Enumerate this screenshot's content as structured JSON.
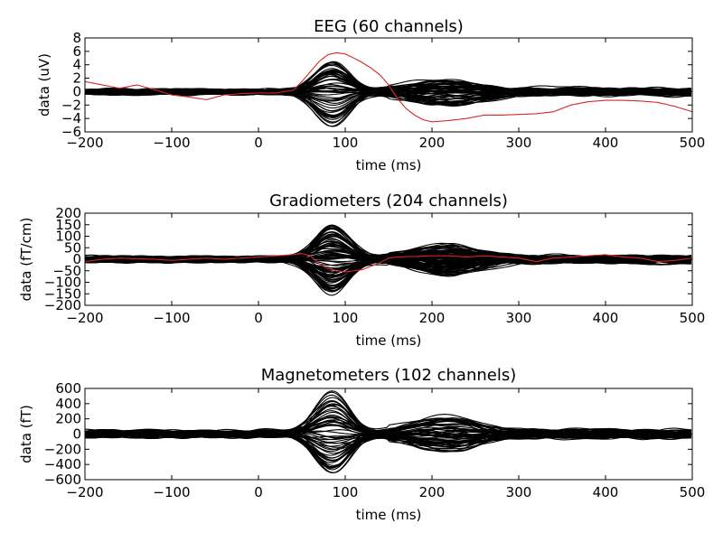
{
  "colors": {
    "trace": "#000000",
    "highlight": "#d62728",
    "background": "#ffffff"
  },
  "chart_data": [
    {
      "type": "line",
      "title": "EEG (60 channels)",
      "xlabel": "time (ms)",
      "ylabel": "data (uV)",
      "xlim": [
        -200,
        500
      ],
      "ylim": [
        -6,
        8
      ],
      "xticks": [
        -200,
        -100,
        0,
        100,
        200,
        300,
        400,
        500
      ],
      "xtick_labels": [
        "−200",
        "−100",
        "0",
        "100",
        "200",
        "300",
        "400",
        "500"
      ],
      "yticks": [
        8,
        6,
        4,
        2,
        0,
        -2,
        -4,
        -6
      ],
      "ytick_labels": [
        "8",
        "6",
        "4",
        "2",
        "0",
        "−2",
        "−4",
        "−6"
      ],
      "grid": false,
      "n_channels": 60,
      "trace_color": "#000000",
      "highlight": {
        "color": "#d62728",
        "x": [
          -200,
          -180,
          -160,
          -140,
          -120,
          -100,
          -80,
          -60,
          -40,
          -20,
          0,
          20,
          40,
          50,
          60,
          70,
          80,
          90,
          100,
          110,
          120,
          130,
          140,
          150,
          160,
          170,
          180,
          190,
          200,
          220,
          240,
          260,
          280,
          300,
          320,
          340,
          360,
          380,
          400,
          420,
          440,
          460,
          480,
          500
        ],
        "y": [
          1.5,
          1.0,
          0.5,
          1.0,
          0.3,
          -0.5,
          -0.8,
          -1.2,
          -0.5,
          -0.3,
          -0.2,
          -0.2,
          0.2,
          1.5,
          3.0,
          4.5,
          5.5,
          5.8,
          5.6,
          5.0,
          4.3,
          3.5,
          2.5,
          1.0,
          -1.0,
          -2.5,
          -3.5,
          -4.2,
          -4.5,
          -4.3,
          -4.0,
          -3.5,
          -3.5,
          -3.4,
          -3.3,
          -3.0,
          -2.0,
          -1.5,
          -1.3,
          -1.3,
          -1.4,
          -1.6,
          -2.2,
          -3.0
        ]
      }
    },
    {
      "type": "line",
      "title": "Gradiometers (204 channels)",
      "xlabel": "time (ms)",
      "ylabel": "data (fT/cm)",
      "xlim": [
        -200,
        500
      ],
      "ylim": [
        -200,
        200
      ],
      "xticks": [
        -200,
        -100,
        0,
        100,
        200,
        300,
        400,
        500
      ],
      "xtick_labels": [
        "−200",
        "−100",
        "0",
        "100",
        "200",
        "300",
        "400",
        "500"
      ],
      "yticks": [
        200,
        150,
        100,
        50,
        0,
        -50,
        -100,
        -150,
        -200
      ],
      "ytick_labels": [
        "200",
        "150",
        "100",
        "50",
        "0",
        "−50",
        "−100",
        "−150",
        "−200"
      ],
      "grid": false,
      "n_channels": 204,
      "trace_color": "#000000",
      "highlight": {
        "color": "#d62728",
        "x": [
          -200,
          -180,
          -160,
          -140,
          -120,
          -100,
          -80,
          -60,
          -40,
          -20,
          0,
          20,
          40,
          50,
          60,
          70,
          80,
          90,
          100,
          110,
          120,
          130,
          140,
          150,
          160,
          180,
          200,
          220,
          240,
          260,
          280,
          300,
          320,
          340,
          360,
          380,
          400,
          420,
          440,
          460,
          480,
          500
        ],
        "y": [
          -10,
          0,
          5,
          2,
          0,
          -5,
          0,
          5,
          0,
          5,
          10,
          15,
          20,
          25,
          15,
          -20,
          -40,
          -50,
          -55,
          -50,
          -45,
          -30,
          -15,
          5,
          10,
          12,
          15,
          15,
          10,
          15,
          10,
          5,
          -10,
          5,
          10,
          15,
          20,
          10,
          5,
          -10,
          -5,
          5
        ]
      }
    },
    {
      "type": "line",
      "title": "Magnetometers (102 channels)",
      "xlabel": "time (ms)",
      "ylabel": "data (fT)",
      "xlim": [
        -200,
        500
      ],
      "ylim": [
        -600,
        600
      ],
      "xticks": [
        -200,
        -100,
        0,
        100,
        200,
        300,
        400,
        500
      ],
      "xtick_labels": [
        "−200",
        "−100",
        "0",
        "100",
        "200",
        "300",
        "400",
        "500"
      ],
      "yticks": [
        600,
        400,
        200,
        0,
        -200,
        -400,
        -600
      ],
      "ytick_labels": [
        "600",
        "400",
        "200",
        "0",
        "−200",
        "−400",
        "−600"
      ],
      "grid": false,
      "n_channels": 102,
      "trace_color": "#000000",
      "highlight": null
    }
  ]
}
